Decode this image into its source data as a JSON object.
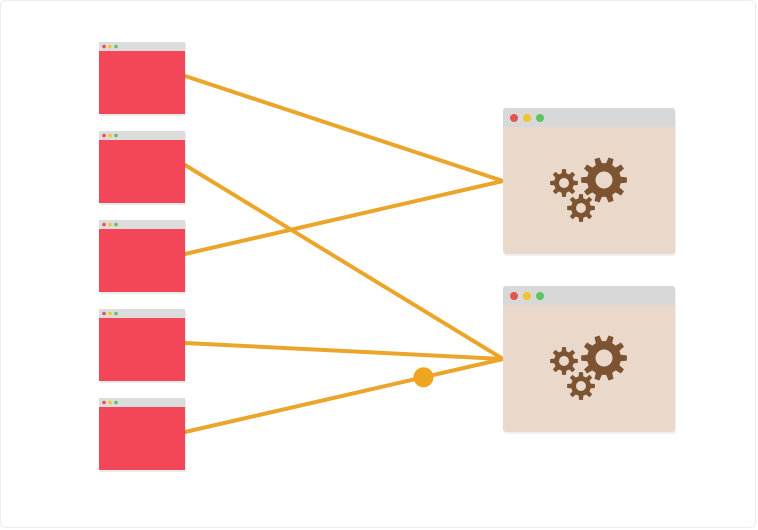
{
  "colors": {
    "background": "#ffffff",
    "client_body": "#f34659",
    "client_titlebar": "#dcdcdc",
    "server_body": "#ead9ca",
    "server_titlebar": "#d8d8d8",
    "connection_line": "#eaa52a",
    "packet_dot": "#f0a51e",
    "gear": "#7d5432",
    "traffic_red": "#e4534f",
    "traffic_yellow": "#f2c22f",
    "traffic_green": "#5cc460"
  },
  "clients": [
    {
      "id": "client-1",
      "icon": "browser-window-icon"
    },
    {
      "id": "client-2",
      "icon": "browser-window-icon"
    },
    {
      "id": "client-3",
      "icon": "browser-window-icon"
    },
    {
      "id": "client-4",
      "icon": "browser-window-icon"
    },
    {
      "id": "client-5",
      "icon": "browser-window-icon"
    }
  ],
  "servers": [
    {
      "id": "server-1",
      "icon": "gears-icon"
    },
    {
      "id": "server-2",
      "icon": "gears-icon"
    }
  ],
  "connections": [
    {
      "from": "client-1",
      "to": "server-1"
    },
    {
      "from": "client-2",
      "to": "server-2"
    },
    {
      "from": "client-3",
      "to": "server-1"
    },
    {
      "from": "client-4",
      "to": "server-2"
    },
    {
      "from": "client-5",
      "to": "server-2"
    }
  ],
  "packet": {
    "connection": 4,
    "progress": 0.75
  }
}
